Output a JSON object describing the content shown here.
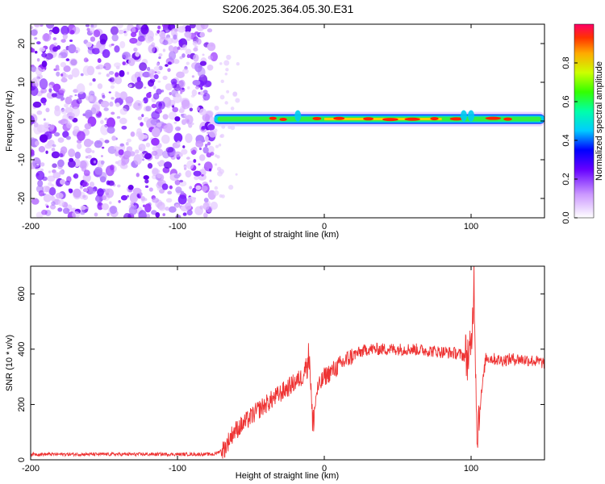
{
  "title": "S206.2025.364.05.30.E31",
  "chart_data": [
    {
      "type": "heatmap",
      "title": "S206.2025.364.05.30.E31",
      "xlabel": "Height of straight line (km)",
      "ylabel": "Frequency (Hz)",
      "xlim": [
        -200,
        150
      ],
      "ylim": [
        -25,
        25
      ],
      "xticks": [
        -200,
        -100,
        0,
        100
      ],
      "yticks": [
        -20,
        -10,
        0,
        10,
        20
      ],
      "noise_region_x": [
        -200,
        -75
      ],
      "signal_frequency": 0.5,
      "signal_region_x": [
        -75,
        150
      ],
      "colorbar": {
        "label": "Normalized spectral amplitude",
        "range": [
          0,
          1
        ],
        "ticks": [
          0.0,
          0.2,
          0.4,
          0.6,
          0.8
        ]
      }
    },
    {
      "type": "line",
      "xlabel": "Height of straight line (km)",
      "ylabel": "SNR (10 * v/v)",
      "xlim": [
        -200,
        150
      ],
      "ylim": [
        0,
        700
      ],
      "xticks": [
        -200,
        -100,
        0,
        100
      ],
      "yticks": [
        0,
        200,
        400,
        600
      ],
      "color": "#ee3333",
      "series": [
        {
          "name": "SNR",
          "x": [
            -200,
            -150,
            -100,
            -75,
            -68,
            -62,
            -55,
            -45,
            -35,
            -25,
            -15,
            -10,
            -8,
            -5,
            0,
            10,
            20,
            30,
            40,
            50,
            60,
            70,
            80,
            90,
            96,
            100,
            102,
            104,
            110,
            120,
            130,
            140,
            150
          ],
          "y": [
            20,
            20,
            20,
            20,
            40,
            100,
            130,
            180,
            220,
            260,
            300,
            380,
            120,
            250,
            300,
            340,
            380,
            400,
            400,
            400,
            400,
            395,
            390,
            385,
            375,
            380,
            650,
            100,
            370,
            360,
            365,
            360,
            350
          ]
        }
      ]
    }
  ]
}
